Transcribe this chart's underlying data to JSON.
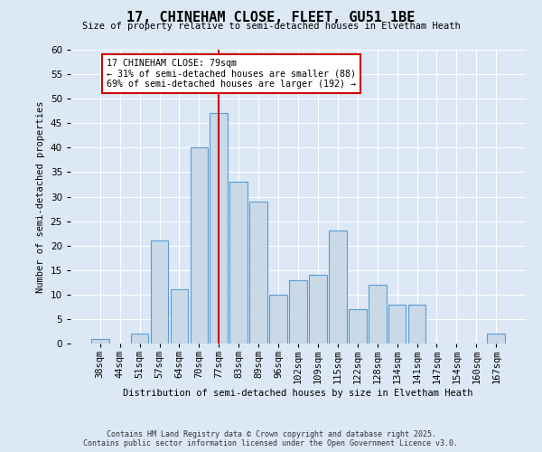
{
  "title": "17, CHINEHAM CLOSE, FLEET, GU51 1BE",
  "subtitle": "Size of property relative to semi-detached houses in Elvetham Heath",
  "xlabel": "Distribution of semi-detached houses by size in Elvetham Heath",
  "ylabel": "Number of semi-detached properties",
  "footer": "Contains HM Land Registry data © Crown copyright and database right 2025.\nContains public sector information licensed under the Open Government Licence v3.0.",
  "bins": [
    "38sqm",
    "44sqm",
    "51sqm",
    "57sqm",
    "64sqm",
    "70sqm",
    "77sqm",
    "83sqm",
    "89sqm",
    "96sqm",
    "102sqm",
    "109sqm",
    "115sqm",
    "122sqm",
    "128sqm",
    "134sqm",
    "141sqm",
    "147sqm",
    "154sqm",
    "160sqm",
    "167sqm"
  ],
  "values": [
    1,
    0,
    2,
    21,
    11,
    40,
    47,
    33,
    29,
    10,
    13,
    14,
    23,
    7,
    12,
    8,
    8,
    0,
    0,
    0,
    2
  ],
  "bar_color": "#c9d9e8",
  "bar_edge_color": "#5b9bd5",
  "marker_bin_index": 6,
  "marker_color": "#cc0000",
  "annotation_title": "17 CHINEHAM CLOSE: 79sqm",
  "annotation_line1": "← 31% of semi-detached houses are smaller (88)",
  "annotation_line2": "69% of semi-detached houses are larger (192) →",
  "annotation_box_color": "#cc0000",
  "background_color": "#dce8f5",
  "plot_bg_color": "#dce8f5",
  "grid_color": "#ffffff",
  "ylim": [
    0,
    60
  ],
  "yticks": [
    0,
    5,
    10,
    15,
    20,
    25,
    30,
    35,
    40,
    45,
    50,
    55,
    60
  ]
}
